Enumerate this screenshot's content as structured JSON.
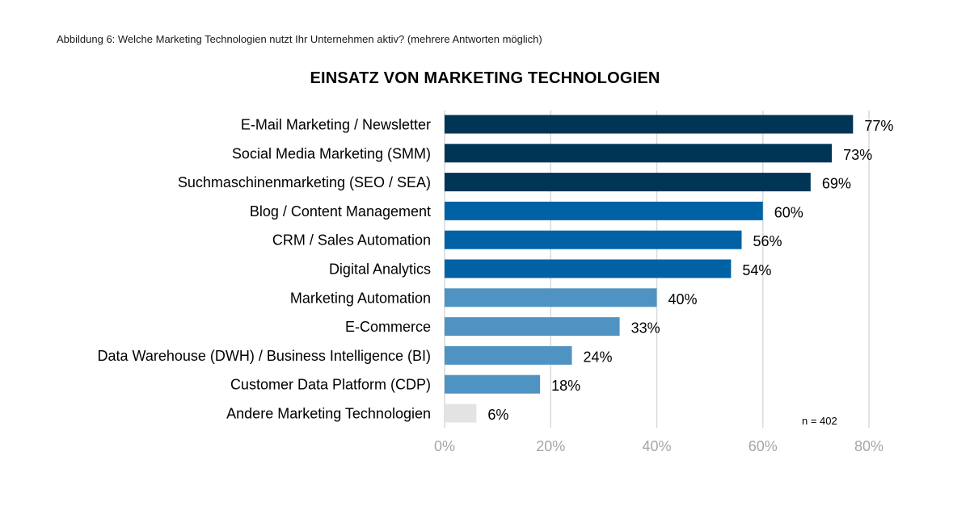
{
  "caption": "Abbildung 6: Welche Marketing Technologien nutzt Ihr Unternehmen aktiv? (mehrere Antworten möglich)",
  "chart_data": {
    "type": "bar",
    "orientation": "horizontal",
    "title": "EINSATZ VON MARKETING TECHNOLOGIEN",
    "categories": [
      "E-Mail Marketing / Newsletter",
      "Social Media Marketing (SMM)",
      "Suchmaschinenmarketing (SEO / SEA)",
      "Blog / Content Management",
      "CRM / Sales Automation",
      "Digital Analytics",
      "Marketing Automation",
      "E-Commerce",
      "Data Warehouse (DWH) / Business Intelligence (BI)",
      "Customer Data Platform (CDP)",
      "Andere Marketing Technologien"
    ],
    "values": [
      77,
      73,
      69,
      60,
      56,
      54,
      40,
      33,
      24,
      18,
      6
    ],
    "value_labels": [
      "77%",
      "73%",
      "69%",
      "60%",
      "56%",
      "54%",
      "40%",
      "33%",
      "24%",
      "18%",
      "6%"
    ],
    "colors": [
      "#003556",
      "#003556",
      "#003556",
      "#0062a5",
      "#0062a5",
      "#0062a5",
      "#4f93c2",
      "#4f93c2",
      "#4f93c2",
      "#4f93c2",
      "#e3e3e3"
    ],
    "xlim": [
      0,
      80
    ],
    "xticks": [
      0,
      20,
      40,
      60,
      80
    ],
    "xtick_labels": [
      "0%",
      "20%",
      "40%",
      "60%",
      "80%"
    ],
    "grid": true,
    "gridline_color": "#d9d9d9",
    "note": "n = 402"
  }
}
